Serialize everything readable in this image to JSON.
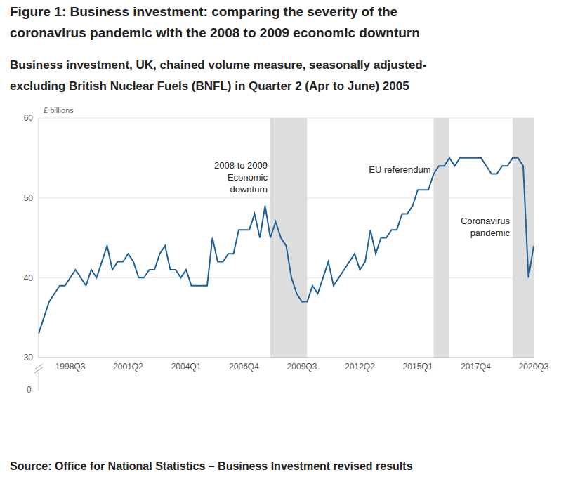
{
  "chart_data": {
    "type": "line",
    "title": "Figure 1: Business investment: comparing the severity of the coronavirus pandemic with the 2008 to 2009 economic downturn",
    "subtitle": "Business investment, UK, chained volume measure, seasonally adjusted- excluding British Nuclear Fuels (BNFL) in Quarter 2 (Apr to June) 2005",
    "source": "Source: Office for National Statistics – Business Investment revised results",
    "y_label": "£ billions",
    "y_axis_break_label": "0",
    "categories": [
      null,
      null,
      null,
      null,
      null,
      null,
      "1998Q3",
      null,
      null,
      null,
      null,
      null,
      null,
      null,
      null,
      null,
      null,
      "2001Q2",
      null,
      null,
      null,
      null,
      null,
      null,
      null,
      null,
      null,
      null,
      "2004Q1",
      null,
      null,
      null,
      null,
      null,
      null,
      null,
      null,
      null,
      null,
      "2006Q4",
      null,
      null,
      null,
      null,
      null,
      null,
      null,
      null,
      null,
      null,
      "2009Q3",
      null,
      null,
      null,
      null,
      null,
      null,
      null,
      null,
      null,
      null,
      "2012Q2",
      null,
      null,
      null,
      null,
      null,
      null,
      null,
      null,
      null,
      null,
      "2015Q1",
      null,
      null,
      null,
      null,
      null,
      null,
      null,
      null,
      null,
      null,
      "2017Q4",
      null,
      null,
      null,
      null,
      null,
      null,
      null,
      null,
      null,
      null,
      "2020Q3"
    ],
    "values": [
      33,
      35,
      37,
      38,
      39,
      39,
      40,
      41,
      40,
      39,
      41,
      40,
      42,
      44,
      41,
      42,
      42,
      43,
      42,
      40,
      40,
      41,
      41,
      43,
      44,
      41,
      41,
      40,
      41,
      39,
      39,
      39,
      39,
      45,
      42,
      42,
      43,
      43,
      46,
      46,
      46,
      48,
      45,
      49,
      45,
      47,
      45,
      44,
      40,
      38,
      37,
      37,
      39,
      38,
      40,
      42,
      39,
      40,
      41,
      42,
      43,
      41,
      42,
      46,
      43,
      45,
      45,
      46,
      46,
      48,
      48,
      49,
      51,
      51,
      51,
      53,
      54,
      54,
      55,
      54,
      55,
      55,
      55,
      55,
      55,
      54,
      53,
      53,
      54,
      54,
      55,
      55,
      54,
      40,
      44
    ],
    "color": "#206095",
    "ylim": [
      30,
      60
    ],
    "yticks": [
      30,
      40,
      50,
      60
    ],
    "grid": true,
    "shaded_regions": [
      {
        "label": [
          "2008 to 2009",
          "Economic",
          "downturn"
        ],
        "start": 44,
        "end": 51,
        "color": "#dddddd"
      },
      {
        "label": [
          "EU referendum"
        ],
        "start": 75,
        "end": 78,
        "color": "#dddddd"
      },
      {
        "label": [
          "Coronavirus",
          "pandemic"
        ],
        "start": 90,
        "end": 94,
        "color": "#dddddd"
      }
    ]
  }
}
